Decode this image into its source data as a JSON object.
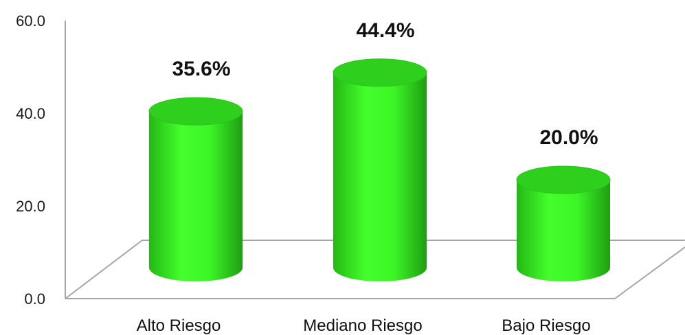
{
  "chart_data": {
    "type": "bar",
    "style": "3d-cylinder",
    "categories": [
      "Alto Riesgo",
      "Mediano Riesgo",
      "Bajo Riesgo"
    ],
    "values": [
      35.6,
      44.4,
      20.0
    ],
    "data_labels": [
      "35.6%",
      "44.4%",
      "20.0%"
    ],
    "y_ticks": [
      "0.0",
      "20.0",
      "40.0",
      "60.0"
    ],
    "ylim": [
      0,
      60
    ],
    "grid": false,
    "legend": "none",
    "colors": {
      "bar": "#3cf526",
      "bar_dark": "#1e9c12",
      "bar_top": "#2fcf1e",
      "axis": "#a6a6a6"
    }
  }
}
